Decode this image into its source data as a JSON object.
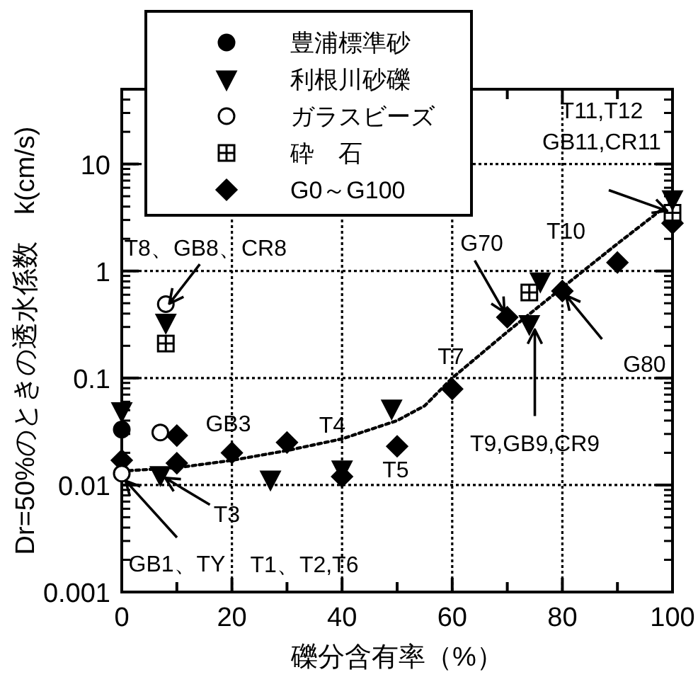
{
  "chart_data": {
    "type": "scatter",
    "xlabel": "礫分含有率（%）",
    "ylabel": "Dr=50%のときの透水係数　k(cm/s)",
    "log": "y",
    "xlim": [
      0,
      100
    ],
    "ylim": [
      0.001,
      50
    ],
    "xticks": [
      0,
      {
        "value": 10,
        "label": null
      },
      20,
      {
        "value": 30,
        "label": null
      },
      40,
      {
        "value": 50,
        "label": null
      },
      60,
      {
        "value": 70,
        "label": null
      },
      80,
      {
        "value": 90,
        "label": null
      },
      100
    ],
    "yticks": [
      0.001,
      0.01,
      0.1,
      1,
      10
    ],
    "grid": true,
    "legend": "top left",
    "series": [
      {
        "name": "豊浦標準砂",
        "color": "#000000",
        "marker": "circle",
        "x": [
          0
        ],
        "values": [
          0.033
        ]
      },
      {
        "name": "利根川砂礫",
        "color": "#000000",
        "marker": "triangle",
        "x": [
          0,
          7,
          8,
          27,
          40,
          49,
          74,
          76,
          100
        ],
        "values": [
          0.049,
          0.0124,
          0.33,
          0.0113,
          0.014,
          0.052,
          0.32,
          0.8,
          4.7
        ]
      },
      {
        "name": "ガラスビーズ",
        "color": "#ffffff",
        "marker": "circle",
        "x": [
          0,
          7,
          8
        ],
        "values": [
          0.0128,
          0.031,
          0.49
        ]
      },
      {
        "name": "砕　石",
        "color": "#ffffff",
        "marker": "square",
        "x": [
          8,
          74,
          100
        ],
        "values": [
          0.21,
          0.63,
          3.5
        ]
      },
      {
        "name": "G0～G100",
        "color": "#000000",
        "marker": "diamond",
        "x": [
          0,
          10,
          10,
          20,
          30,
          40,
          50,
          60,
          70,
          80,
          90,
          100
        ],
        "values": [
          0.017,
          0.029,
          0.016,
          0.02,
          0.025,
          0.012,
          0.023,
          0.079,
          0.37,
          0.65,
          1.2,
          2.8
        ]
      },
      {
        "type": "line",
        "color": "#000000",
        "marker": "none",
        "line_style": "dotted",
        "x": [
          0,
          10,
          20,
          30,
          40,
          50,
          55,
          60,
          70,
          80,
          90,
          100
        ],
        "values": [
          0.0135,
          0.0145,
          0.017,
          0.021,
          0.027,
          0.04,
          0.055,
          0.1,
          0.27,
          0.7,
          1.8,
          4.5
        ]
      }
    ],
    "annotations": [
      {
        "text": "T8、GB8、CR8",
        "x": 8,
        "y": 0.45
      },
      {
        "text": "T11,T12\nGB11,CR11",
        "x": 100,
        "y": 3.5
      },
      {
        "text": "T10",
        "x": 75,
        "y": 0.8
      },
      {
        "text": "G70",
        "x": 70,
        "y": 0.37
      },
      {
        "text": "G80",
        "x": 80,
        "y": 0.65
      },
      {
        "text": "T9,GB9,CR9",
        "x": 75,
        "y": 0.32
      },
      {
        "text": "T7",
        "x": 60,
        "y": 0.08
      },
      {
        "text": "T5",
        "x": 50,
        "y": 0.023
      },
      {
        "text": "T4",
        "x": 30,
        "y": 0.024
      },
      {
        "text": "GB3",
        "x": 7,
        "y": 0.031
      },
      {
        "text": "T3",
        "x": 7,
        "y": 0.0124
      },
      {
        "text": "GB1、TY",
        "x": 0,
        "y": 0.012
      },
      "T1、T2,T6"
    ]
  }
}
